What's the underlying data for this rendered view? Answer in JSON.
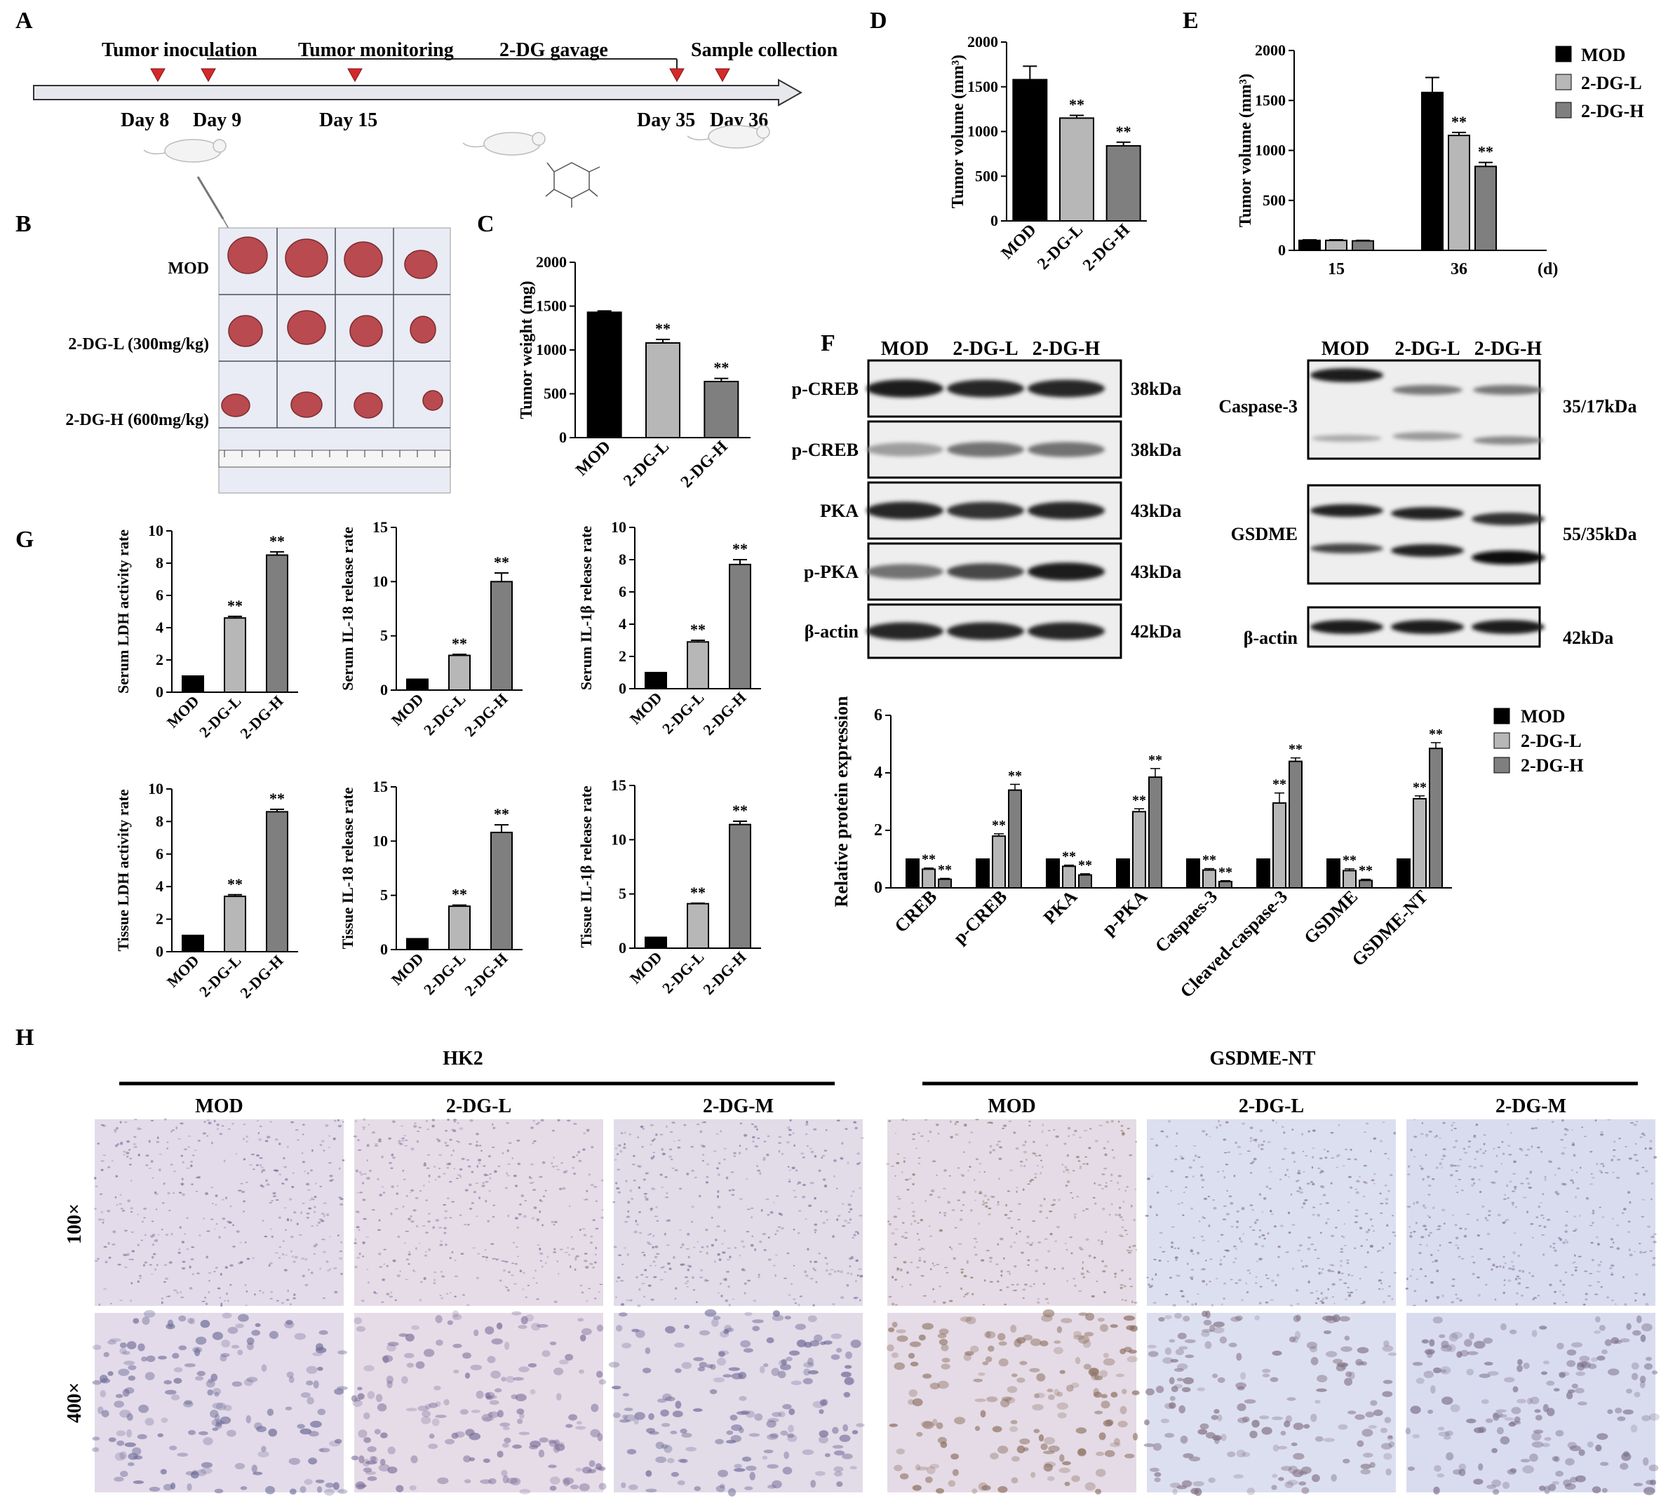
{
  "panels": {
    "A": "A",
    "B": "B",
    "C": "C",
    "D": "D",
    "E": "E",
    "F": "F",
    "G": "G",
    "H": "H"
  },
  "timeline": {
    "stages": [
      "Tumor inoculation",
      "Tumor monitoring",
      "2-DG gavage",
      "Sample collection"
    ],
    "days": [
      "Day 8",
      "Day 9",
      "Day 15",
      "Day 35",
      "Day 36"
    ]
  },
  "photo_labels": [
    "MOD",
    "2-DG-L (300mg/kg)",
    "2-DG-H (600mg/kg)"
  ],
  "groups": [
    "MOD",
    "2-DG-L",
    "2-DG-H"
  ],
  "sig": "**",
  "colors": {
    "MOD": "#000000",
    "2-DG-L": "#b7b7b7",
    "2-DG-H": "#7f7f7f",
    "arrow": "#e6e8ee",
    "marker": "#d6282b"
  },
  "legend_E": [
    "MOD",
    "2-DG-L",
    "2-DG-H"
  ],
  "blot_left": {
    "header": [
      "MOD",
      "2-DG-L",
      "2-DG-H"
    ],
    "rows": [
      {
        "label": "p-CREB",
        "kda": "38kDa",
        "intensity": [
          0.95,
          0.9,
          0.9
        ]
      },
      {
        "label": "p-CREB",
        "kda": "38kDa",
        "intensity": [
          0.35,
          0.55,
          0.55
        ]
      },
      {
        "label": "PKA",
        "kda": "43kDa",
        "intensity": [
          0.9,
          0.85,
          0.9
        ]
      },
      {
        "label": "p-PKA",
        "kda": "43kDa",
        "intensity": [
          0.55,
          0.75,
          0.95
        ]
      },
      {
        "label": "β-actin",
        "kda": "42kDa",
        "intensity": [
          0.9,
          0.9,
          0.9
        ]
      }
    ]
  },
  "blot_right": {
    "header": [
      "MOD",
      "2-DG-L",
      "2-DG-H"
    ],
    "rows": [
      {
        "label": "Caspase-3",
        "kda": "35/17kDa"
      },
      {
        "label": "GSDME",
        "kda": "55/35kDa"
      },
      {
        "label": "β-actin",
        "kda": "42kDa"
      }
    ]
  },
  "ihc": {
    "markers": [
      "HK2",
      "GSDME-NT"
    ],
    "columns": [
      "MOD",
      "2-DG-L",
      "2-DG-M",
      "MOD",
      "2-DG-L",
      "2-DG-M"
    ],
    "rows": [
      "100×",
      "400×"
    ]
  },
  "chart_data": [
    {
      "id": "C",
      "type": "bar",
      "categories": [
        "MOD",
        "2-DG-L",
        "2-DG-H"
      ],
      "values": [
        1430,
        1080,
        640
      ],
      "errors": [
        15,
        40,
        35
      ],
      "sig": [
        "",
        "**",
        "**"
      ],
      "ylabel": "Tumor weight (mg)",
      "ylim": [
        0,
        2000
      ],
      "yticks": [
        0,
        500,
        1000,
        1500,
        2000
      ]
    },
    {
      "id": "D",
      "type": "bar",
      "categories": [
        "MOD",
        "2-DG-L",
        "2-DG-H"
      ],
      "values": [
        1580,
        1150,
        840
      ],
      "errors": [
        150,
        30,
        40
      ],
      "sig": [
        "",
        "**",
        "**"
      ],
      "ylabel": "Tumor volume (mm³)",
      "ylim": [
        0,
        2000
      ],
      "yticks": [
        0,
        500,
        1000,
        1500,
        2000
      ]
    },
    {
      "id": "E",
      "type": "bar",
      "categories": [
        "15",
        "36"
      ],
      "xunit": "(d)",
      "series": [
        {
          "name": "MOD",
          "values": [
            100,
            1580
          ],
          "errors": [
            5,
            150
          ]
        },
        {
          "name": "2-DG-L",
          "values": [
            100,
            1150
          ],
          "errors": [
            5,
            30
          ]
        },
        {
          "name": "2-DG-H",
          "values": [
            95,
            840
          ],
          "errors": [
            5,
            40
          ]
        }
      ],
      "sig": [
        [
          "",
          "",
          ""
        ],
        [
          "",
          "**",
          "**"
        ]
      ],
      "ylabel": "Tumor volume (mm³)",
      "ylim": [
        0,
        2000
      ],
      "yticks": [
        0,
        500,
        1000,
        1500,
        2000
      ]
    },
    {
      "id": "G1",
      "type": "bar",
      "categories": [
        "MOD",
        "2-DG-L",
        "2-DG-H"
      ],
      "values": [
        1,
        4.6,
        8.5
      ],
      "errors": [
        0,
        0.1,
        0.2
      ],
      "sig": [
        "",
        "**",
        "**"
      ],
      "ylabel": "Serum LDH activity rate",
      "ylim": [
        0,
        10
      ],
      "yticks": [
        0,
        2,
        4,
        6,
        8,
        10
      ]
    },
    {
      "id": "G2",
      "type": "bar",
      "categories": [
        "MOD",
        "2-DG-L",
        "2-DG-H"
      ],
      "values": [
        1,
        3.2,
        10
      ],
      "errors": [
        0,
        0.1,
        0.8
      ],
      "sig": [
        "",
        "**",
        "**"
      ],
      "ylabel": "Serum IL-18 release rate",
      "ylim": [
        0,
        15
      ],
      "yticks": [
        0,
        5,
        10,
        15
      ]
    },
    {
      "id": "G3",
      "type": "bar",
      "categories": [
        "MOD",
        "2-DG-L",
        "2-DG-H"
      ],
      "values": [
        1,
        2.9,
        7.7
      ],
      "errors": [
        0,
        0.1,
        0.3
      ],
      "sig": [
        "",
        "**",
        "**"
      ],
      "ylabel": "Serum IL-1β release rate",
      "ylim": [
        0,
        10
      ],
      "yticks": [
        0,
        2,
        4,
        6,
        8,
        10
      ]
    },
    {
      "id": "G4",
      "type": "bar",
      "categories": [
        "MOD",
        "2-DG-L",
        "2-DG-H"
      ],
      "values": [
        1,
        3.4,
        8.6
      ],
      "errors": [
        0,
        0.1,
        0.15
      ],
      "sig": [
        "",
        "**",
        "**"
      ],
      "ylabel": "Tissue LDH activity rate",
      "ylim": [
        0,
        10
      ],
      "yticks": [
        0,
        2,
        4,
        6,
        8,
        10
      ]
    },
    {
      "id": "G5",
      "type": "bar",
      "categories": [
        "MOD",
        "2-DG-L",
        "2-DG-H"
      ],
      "values": [
        1,
        4,
        10.8
      ],
      "errors": [
        0,
        0.1,
        0.7
      ],
      "sig": [
        "",
        "**",
        "**"
      ],
      "ylabel": "Tissue IL-18 release rate",
      "ylim": [
        0,
        15
      ],
      "yticks": [
        0,
        5,
        10,
        15
      ]
    },
    {
      "id": "G6",
      "type": "bar",
      "categories": [
        "MOD",
        "2-DG-L",
        "2-DG-H"
      ],
      "values": [
        1,
        4.1,
        11.4
      ],
      "errors": [
        0,
        0.05,
        0.3
      ],
      "sig": [
        "",
        "**",
        "**"
      ],
      "ylabel": "Tissue IL-1β release rate",
      "ylim": [
        0,
        15
      ],
      "yticks": [
        0,
        5,
        10,
        15
      ]
    },
    {
      "id": "F2",
      "type": "bar",
      "categories": [
        "CREB",
        "p-CREB",
        "PKA",
        "p-PKA",
        "Caspaes-3",
        "Cleaved-caspase-3",
        "GSDME",
        "GSDME-NT"
      ],
      "series": [
        {
          "name": "MOD",
          "values": [
            1,
            1,
            1,
            1,
            1,
            1,
            1,
            1
          ],
          "errors": [
            0,
            0,
            0,
            0,
            0,
            0,
            0,
            0
          ]
        },
        {
          "name": "2-DG-L",
          "values": [
            0.65,
            1.8,
            0.75,
            2.65,
            0.62,
            2.95,
            0.6,
            3.1
          ],
          "errors": [
            0.04,
            0.08,
            0.04,
            0.1,
            0.05,
            0.35,
            0.06,
            0.1
          ]
        },
        {
          "name": "2-DG-H",
          "values": [
            0.3,
            3.4,
            0.45,
            3.85,
            0.22,
            4.4,
            0.26,
            4.85
          ],
          "errors": [
            0.03,
            0.2,
            0.04,
            0.3,
            0.03,
            0.12,
            0.04,
            0.2
          ]
        }
      ],
      "sig": [
        "**",
        "**",
        "**",
        "**",
        "**",
        "**",
        "**",
        "**"
      ],
      "ylabel": "Relative protein expression",
      "ylim": [
        0,
        6
      ],
      "yticks": [
        0,
        2,
        4,
        6
      ],
      "legend": [
        "MOD",
        "2-DG-L",
        "2-DG-H"
      ]
    }
  ]
}
